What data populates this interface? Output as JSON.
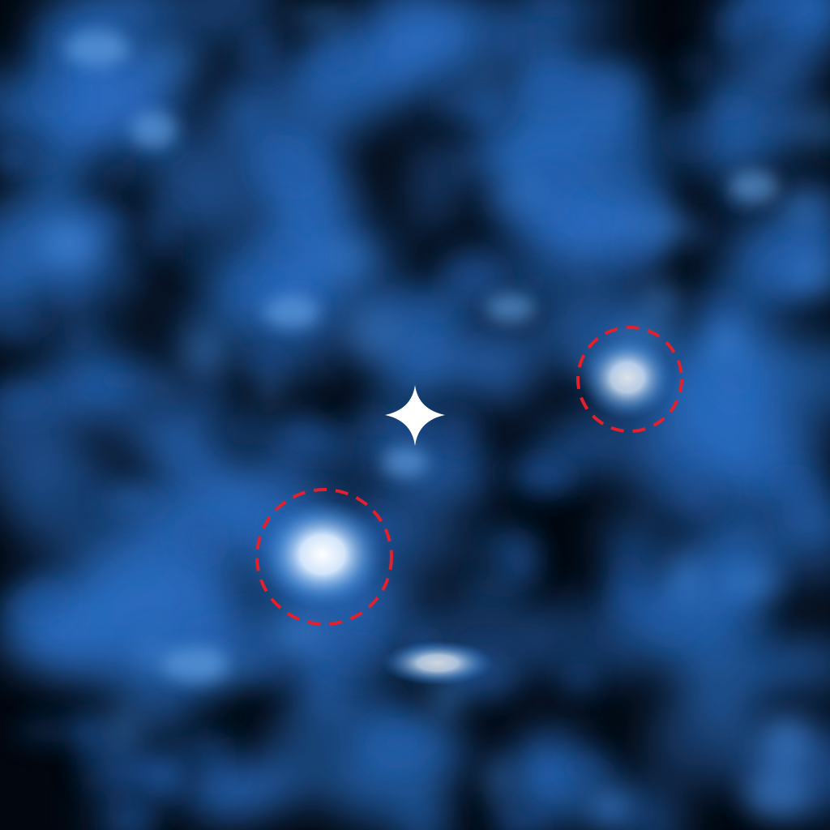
{
  "image": {
    "background_color": "#02070f",
    "noise_color": "#2a6ec4",
    "bright_color": "#ffffff",
    "marker_color": "#ffffff",
    "circle_color": "#e3202b",
    "central_star": {
      "icon": "four-point-star-icon"
    },
    "highlighted_sources": 2
  }
}
